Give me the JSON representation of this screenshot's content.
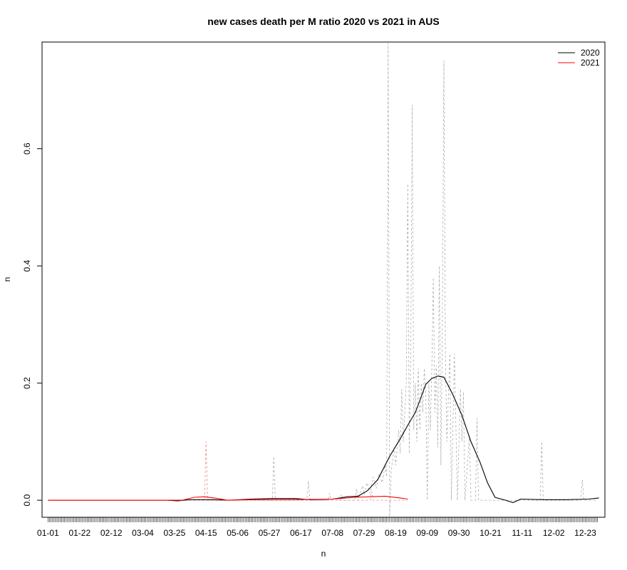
{
  "chart_data": {
    "type": "line",
    "title": "new cases death per M ratio 2020 vs 2021 in AUS",
    "xlabel": "n",
    "ylabel": "n",
    "x_days": [
      1,
      366
    ],
    "xlim": [
      -3,
      371
    ],
    "ylim": [
      -0.029,
      0.782
    ],
    "x_ticks": [
      {
        "day": 1,
        "label": "01-01"
      },
      {
        "day": 22,
        "label": "01-22"
      },
      {
        "day": 43,
        "label": "02-12"
      },
      {
        "day": 64,
        "label": "03-04"
      },
      {
        "day": 85,
        "label": "03-25"
      },
      {
        "day": 106,
        "label": "04-15"
      },
      {
        "day": 127,
        "label": "05-06"
      },
      {
        "day": 148,
        "label": "05-27"
      },
      {
        "day": 169,
        "label": "06-17"
      },
      {
        "day": 190,
        "label": "07-08"
      },
      {
        "day": 211,
        "label": "07-29"
      },
      {
        "day": 232,
        "label": "08-19"
      },
      {
        "day": 253,
        "label": "09-09"
      },
      {
        "day": 274,
        "label": "09-30"
      },
      {
        "day": 295,
        "label": "10-21"
      },
      {
        "day": 316,
        "label": "11-11"
      },
      {
        "day": 337,
        "label": "12-02"
      },
      {
        "day": 358,
        "label": "12-23"
      }
    ],
    "y_ticks": [
      {
        "value": 0.0,
        "label": "0.0"
      },
      {
        "value": 0.2,
        "label": "0.2"
      },
      {
        "value": 0.4,
        "label": "0.4"
      },
      {
        "value": 0.6,
        "label": "0.6"
      }
    ],
    "legend": {
      "position": "top-right",
      "entries": [
        {
          "label": "2020",
          "color": "#000000"
        },
        {
          "label": "2021",
          "color": "#ff0000"
        }
      ]
    },
    "series": [
      {
        "name": "2020",
        "style": "solid",
        "color": "#000000",
        "points": [
          [
            1,
            0.0
          ],
          [
            80,
            0.0
          ],
          [
            87,
            -0.001
          ],
          [
            95,
            0.001
          ],
          [
            110,
            0.001
          ],
          [
            122,
            0.0
          ],
          [
            135,
            0.002
          ],
          [
            150,
            0.003
          ],
          [
            165,
            0.003
          ],
          [
            175,
            0.001
          ],
          [
            190,
            0.002
          ],
          [
            200,
            0.006
          ],
          [
            207,
            0.007
          ],
          [
            213,
            0.016
          ],
          [
            220,
            0.035
          ],
          [
            228,
            0.075
          ],
          [
            235,
            0.105
          ],
          [
            240,
            0.128
          ],
          [
            245,
            0.15
          ],
          [
            248,
            0.17
          ],
          [
            252,
            0.198
          ],
          [
            256,
            0.208
          ],
          [
            260,
            0.212
          ],
          [
            264,
            0.21
          ],
          [
            270,
            0.18
          ],
          [
            276,
            0.145
          ],
          [
            282,
            0.1
          ],
          [
            288,
            0.065
          ],
          [
            293,
            0.03
          ],
          [
            298,
            0.005
          ],
          [
            305,
            0.0
          ],
          [
            310,
            -0.004
          ],
          [
            315,
            0.002
          ],
          [
            330,
            0.001
          ],
          [
            345,
            0.001
          ],
          [
            360,
            0.002
          ],
          [
            367,
            0.004
          ]
        ]
      },
      {
        "name": "2021",
        "style": "solid",
        "color": "#ff0000",
        "points": [
          [
            1,
            0.0
          ],
          [
            80,
            0.0
          ],
          [
            90,
            0.0
          ],
          [
            98,
            0.005
          ],
          [
            105,
            0.006
          ],
          [
            114,
            0.003
          ],
          [
            120,
            0.0
          ],
          [
            135,
            0.001
          ],
          [
            160,
            0.001
          ],
          [
            190,
            0.002
          ],
          [
            205,
            0.005
          ],
          [
            215,
            0.006
          ],
          [
            225,
            0.007
          ],
          [
            235,
            0.004
          ],
          [
            240,
            0.002
          ]
        ]
      },
      {
        "name": "",
        "style": "dashed",
        "color": "#aaaaaa",
        "points": [
          [
            1,
            0
          ],
          [
            150,
            0
          ],
          [
            151,
            0.075
          ],
          [
            152,
            0
          ],
          [
            173,
            0
          ],
          [
            174,
            0.033
          ],
          [
            175,
            0
          ],
          [
            187,
            0
          ],
          [
            188,
            0.012
          ],
          [
            189,
            0
          ],
          [
            195,
            0
          ],
          [
            196,
            0.01
          ],
          [
            197,
            0
          ],
          [
            205,
            0
          ],
          [
            206,
            0.02
          ],
          [
            207,
            0
          ],
          [
            210,
            0.025
          ],
          [
            211,
            0.01
          ],
          [
            213,
            0.03
          ],
          [
            215,
            0.012
          ],
          [
            217,
            0.04
          ],
          [
            219,
            0.02
          ],
          [
            221,
            0.045
          ],
          [
            223,
            0.03
          ],
          [
            225,
            0.06
          ],
          [
            226,
            0.04
          ],
          [
            227,
            0.78
          ],
          [
            228,
            -0.028
          ],
          [
            229,
            0.05
          ],
          [
            231,
            0.09
          ],
          [
            232,
            0.06
          ],
          [
            234,
            0.12
          ],
          [
            235,
            0.08
          ],
          [
            236,
            0.19
          ],
          [
            237,
            0.1
          ],
          [
            239,
            0.2
          ],
          [
            240,
            0.54
          ],
          [
            241,
            0.08
          ],
          [
            242,
            0.25
          ],
          [
            243,
            0.675
          ],
          [
            244,
            0.12
          ],
          [
            245,
            0.2
          ],
          [
            246,
            0.1
          ],
          [
            247,
            0.225
          ],
          [
            248,
            0.12
          ],
          [
            249,
            0.2
          ],
          [
            250,
            0.15
          ],
          [
            251,
            0.225
          ],
          [
            252,
            0.18
          ],
          [
            253,
            0.0
          ],
          [
            254,
            0.2
          ],
          [
            255,
            0.12
          ],
          [
            256,
            0.225
          ],
          [
            257,
            0.38
          ],
          [
            258,
            0.15
          ],
          [
            259,
            0.23
          ],
          [
            260,
            0.09
          ],
          [
            261,
            0.4
          ],
          [
            262,
            0.06
          ],
          [
            263,
            0.3
          ],
          [
            264,
            0.75
          ],
          [
            265,
            0.25
          ],
          [
            266,
            0.1
          ],
          [
            268,
            0.25
          ],
          [
            269,
            0.0
          ],
          [
            271,
            0.25
          ],
          [
            273,
            0.0
          ],
          [
            275,
            0.19
          ],
          [
            276,
            0.1
          ],
          [
            277,
            0.185
          ],
          [
            278,
            0.0
          ],
          [
            281,
            0.11
          ],
          [
            282,
            0.0
          ],
          [
            285,
            0.0
          ],
          [
            286,
            0.14
          ],
          [
            287,
            0.0
          ],
          [
            300,
            0
          ],
          [
            306,
            0
          ],
          [
            309,
            0.0
          ],
          [
            320,
            0
          ],
          [
            328,
            0
          ],
          [
            329,
            0.1
          ],
          [
            330,
            0
          ],
          [
            355,
            0
          ],
          [
            356,
            0.035
          ],
          [
            357,
            0
          ],
          [
            366,
            0
          ]
        ]
      },
      {
        "name": "",
        "style": "dashed",
        "color": "#e88a8a",
        "points": [
          [
            1,
            0
          ],
          [
            100,
            0
          ],
          [
            105,
            0.0
          ],
          [
            106,
            0.1
          ],
          [
            107,
            0
          ],
          [
            215,
            0
          ],
          [
            216,
            0.015
          ],
          [
            217,
            0
          ],
          [
            240,
            0
          ]
        ]
      }
    ]
  }
}
